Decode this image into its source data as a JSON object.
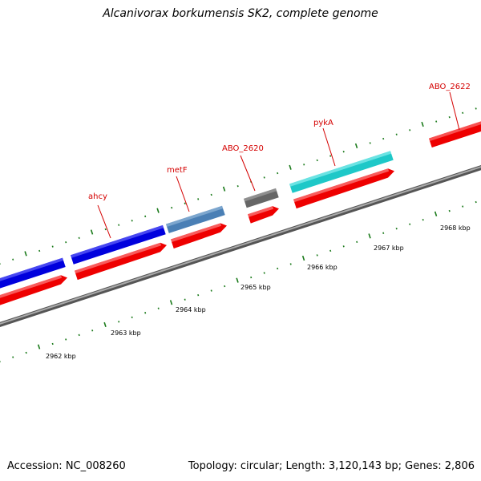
{
  "title": "Alcanivorax borkumensis SK2, complete genome",
  "footer": {
    "accession": "Accession: NC_008260",
    "summary": "Topology: circular; Length: 3,120,143 bp; Genes: 2,806"
  },
  "genes": [
    {
      "label": "ahcy",
      "color": "#0000dd"
    },
    {
      "label": "metF",
      "color": "#4a7fb5"
    },
    {
      "label": "ABO_2620",
      "color": "#666666"
    },
    {
      "label": "pykA",
      "color": "#1ec8c8"
    },
    {
      "label": "ABO_2622",
      "color": "#ee0000"
    }
  ],
  "scale_labels": [
    "2962 kbp",
    "2963 kbp",
    "2964 kbp",
    "2965 kbp",
    "2966 kbp",
    "2967 kbp",
    "2968 kbp"
  ],
  "colors": {
    "cds": "#ee0000",
    "backbone": "#888888",
    "tick": "#1a7a1a"
  }
}
